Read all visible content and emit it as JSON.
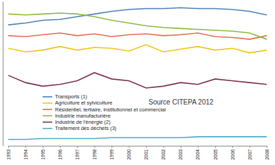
{
  "chart_data": {
    "type": "line",
    "annotation": "Source CITEPA 2012",
    "categories": [
      "1993",
      "1994",
      "1995",
      "1996",
      "1997",
      "1998",
      "1999",
      "2000",
      "2001",
      "2002",
      "2003",
      "2004",
      "2005",
      "2006",
      "2007",
      "2008"
    ],
    "ylim": [
      0,
      160
    ],
    "tick_labels": "x",
    "grid": false,
    "legend": "lower left",
    "series": [
      {
        "name": "Transports (1)",
        "color": "#4a7ebb",
        "values": [
          134,
          136,
          139,
          140,
          143,
          146,
          149,
          151,
          152,
          152,
          153,
          152,
          152,
          151,
          149,
          145
        ]
      },
      {
        "name": "Agriculture et sylviculture",
        "color": "#f2c314",
        "values": [
          108,
          104,
          106,
          110,
          106,
          109,
          108,
          105,
          112,
          104,
          107,
          110,
          106,
          108,
          103,
          106
        ]
      },
      {
        "name": "Résidentiel, tertiaire, institutionnel et commercial",
        "color": "#e46c4a",
        "values": [
          122,
          121,
          123,
          125,
          122,
          124,
          121,
          123,
          124,
          122,
          123,
          125,
          121,
          120,
          118,
          122
        ]
      },
      {
        "name": "Industrie manufacturière",
        "color": "#8cb83c",
        "values": [
          146,
          145,
          146,
          147,
          146,
          143,
          139,
          136,
          133,
          131,
          130,
          129,
          128,
          127,
          125,
          118
        ]
      },
      {
        "name": "Industrie de l'énergie (2)",
        "color": "#7b2c4e",
        "values": [
          78,
          70,
          66,
          68,
          72,
          81,
          74,
          72,
          64,
          66,
          70,
          68,
          74,
          72,
          70,
          68
        ]
      },
      {
        "name": "Traitement des déchets (3)",
        "color": "#4bacc6",
        "values": [
          7,
          7,
          8,
          8,
          8,
          8,
          9,
          9,
          9,
          9,
          9,
          10,
          10,
          10,
          10,
          10
        ]
      }
    ]
  }
}
